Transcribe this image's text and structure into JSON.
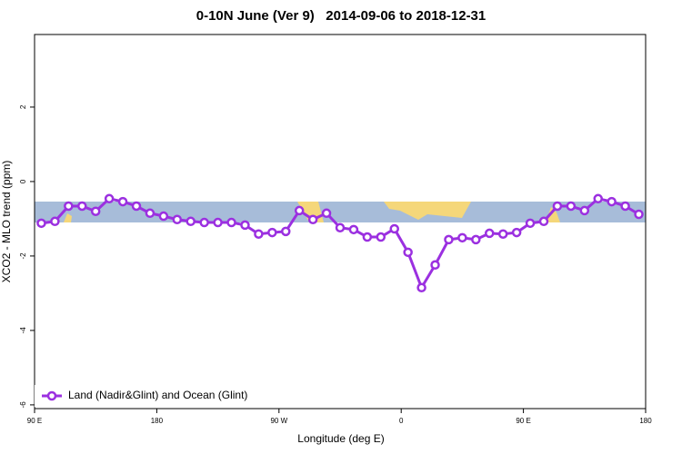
{
  "chart_data": {
    "type": "line",
    "title": "0-10N June (Ver 9)   2014-09-06 to 2018-12-31",
    "x_label": "Longitude (deg E)",
    "y_label": "XCO2 - MLO trend (ppm)",
    "x": [
      95,
      105,
      115,
      125,
      135,
      145,
      155,
      165,
      175,
      185,
      195,
      205,
      215,
      225,
      235,
      245,
      255,
      265,
      275,
      285,
      295,
      305,
      315,
      325,
      335,
      345,
      355,
      365,
      375,
      385,
      395,
      405,
      415,
      425,
      435,
      445,
      455,
      465,
      475,
      485,
      495,
      505,
      515,
      525,
      535
    ],
    "series": [
      {
        "name": "Land (Nadir&Glint) and Ocean (Glint)",
        "color": "#9b30e0",
        "values": [
          -1.12,
          -1.07,
          -0.66,
          -0.66,
          -0.8,
          -0.46,
          -0.54,
          -0.66,
          -0.85,
          -0.93,
          -1.02,
          -1.07,
          -1.1,
          -1.1,
          -1.1,
          -1.17,
          -1.41,
          -1.37,
          -1.34,
          -0.78,
          -1.02,
          -0.85,
          -1.24,
          -1.29,
          -1.49,
          -1.49,
          -1.27,
          -1.9,
          -2.85,
          -2.24,
          -1.56,
          -1.51,
          -1.56,
          -1.39,
          -1.41,
          -1.37,
          -1.12,
          -1.07,
          -0.66,
          -0.66,
          -0.78,
          -0.46,
          -0.54,
          -0.66,
          -0.88
        ]
      }
    ],
    "xlim": [
      90,
      540
    ],
    "xticks": [
      {
        "value": 90,
        "label": "90 E"
      },
      180,
      {
        "value": 270,
        "label": "90 W"
      },
      {
        "value": 360,
        "label": "0"
      },
      {
        "value": 450,
        "label": "90 E"
      },
      {
        "value": 540,
        "label": "180"
      }
    ],
    "ylim": [
      -6.1,
      3.95
    ],
    "yticks": [
      -6,
      -4,
      -2,
      0,
      2
    ],
    "legend": "bottom-left"
  }
}
